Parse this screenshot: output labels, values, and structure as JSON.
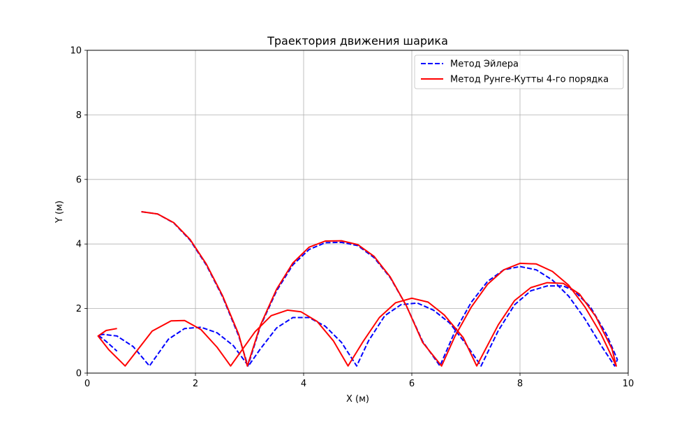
{
  "chart_data": {
    "type": "line",
    "title": "Траектория движения шарика",
    "xlabel": "X (м)",
    "ylabel": "Y (м)",
    "xlim": [
      0,
      10
    ],
    "ylim": [
      0,
      10
    ],
    "xticks": [
      0,
      2,
      4,
      6,
      8,
      10
    ],
    "yticks": [
      0,
      2,
      4,
      6,
      8,
      10
    ],
    "grid": true,
    "legend_position": "top-right",
    "series": [
      {
        "name": "Метод Эйлера",
        "color": "#0000ff",
        "linestyle": "dashed",
        "points": [
          [
            1.0,
            5.0
          ],
          [
            1.3,
            4.93
          ],
          [
            1.6,
            4.65
          ],
          [
            1.9,
            4.12
          ],
          [
            2.2,
            3.35
          ],
          [
            2.5,
            2.37
          ],
          [
            2.8,
            1.15
          ],
          [
            2.97,
            0.22
          ],
          [
            3.2,
            1.45
          ],
          [
            3.5,
            2.55
          ],
          [
            3.8,
            3.35
          ],
          [
            4.1,
            3.83
          ],
          [
            4.4,
            4.04
          ],
          [
            4.7,
            4.05
          ],
          [
            5.0,
            3.95
          ],
          [
            5.3,
            3.58
          ],
          [
            5.6,
            2.96
          ],
          [
            5.9,
            2.08
          ],
          [
            6.2,
            0.98
          ],
          [
            6.52,
            0.22
          ],
          [
            6.8,
            1.3
          ],
          [
            7.1,
            2.2
          ],
          [
            7.4,
            2.84
          ],
          [
            7.7,
            3.2
          ],
          [
            8.0,
            3.3
          ],
          [
            8.3,
            3.2
          ],
          [
            8.6,
            2.88
          ],
          [
            8.9,
            2.38
          ],
          [
            9.2,
            1.68
          ],
          [
            9.5,
            0.85
          ],
          [
            9.75,
            0.22
          ],
          [
            9.8,
            0.42
          ],
          [
            9.6,
            1.2
          ],
          [
            9.3,
            2.05
          ],
          [
            9.0,
            2.55
          ],
          [
            8.8,
            2.7
          ],
          [
            8.5,
            2.7
          ],
          [
            8.2,
            2.55
          ],
          [
            7.9,
            2.12
          ],
          [
            7.6,
            1.32
          ],
          [
            7.28,
            0.22
          ],
          [
            7.0,
            0.9
          ],
          [
            6.7,
            1.55
          ],
          [
            6.4,
            1.95
          ],
          [
            6.1,
            2.17
          ],
          [
            5.8,
            2.12
          ],
          [
            5.5,
            1.78
          ],
          [
            5.2,
            1.0
          ],
          [
            4.98,
            0.22
          ],
          [
            4.7,
            0.95
          ],
          [
            4.4,
            1.45
          ],
          [
            4.1,
            1.72
          ],
          [
            3.8,
            1.72
          ],
          [
            3.5,
            1.4
          ],
          [
            3.2,
            0.75
          ],
          [
            2.98,
            0.22
          ],
          [
            2.7,
            0.85
          ],
          [
            2.4,
            1.25
          ],
          [
            2.1,
            1.42
          ],
          [
            1.8,
            1.38
          ],
          [
            1.5,
            1.05
          ],
          [
            1.15,
            0.22
          ],
          [
            0.85,
            0.82
          ],
          [
            0.55,
            1.15
          ],
          [
            0.3,
            1.2
          ],
          [
            0.2,
            1.18
          ],
          [
            0.35,
            0.98
          ],
          [
            0.55,
            0.68
          ]
        ]
      },
      {
        "name": "Метод Рунге-Кутты 4-го порядка",
        "color": "#ff0000",
        "linestyle": "solid",
        "points": [
          [
            1.0,
            5.0
          ],
          [
            1.3,
            4.93
          ],
          [
            1.6,
            4.66
          ],
          [
            1.9,
            4.14
          ],
          [
            2.2,
            3.38
          ],
          [
            2.5,
            2.4
          ],
          [
            2.8,
            1.2
          ],
          [
            2.96,
            0.22
          ],
          [
            3.2,
            1.48
          ],
          [
            3.5,
            2.6
          ],
          [
            3.8,
            3.41
          ],
          [
            4.1,
            3.9
          ],
          [
            4.4,
            4.09
          ],
          [
            4.7,
            4.1
          ],
          [
            5.0,
            3.98
          ],
          [
            5.3,
            3.62
          ],
          [
            5.6,
            2.98
          ],
          [
            5.9,
            2.08
          ],
          [
            6.2,
            0.95
          ],
          [
            6.55,
            0.22
          ],
          [
            6.8,
            1.15
          ],
          [
            7.1,
            2.05
          ],
          [
            7.4,
            2.75
          ],
          [
            7.7,
            3.2
          ],
          [
            8.0,
            3.4
          ],
          [
            8.3,
            3.38
          ],
          [
            8.6,
            3.15
          ],
          [
            8.9,
            2.72
          ],
          [
            9.2,
            2.05
          ],
          [
            9.5,
            1.2
          ],
          [
            9.78,
            0.22
          ],
          [
            9.7,
            0.75
          ],
          [
            9.4,
            1.75
          ],
          [
            9.1,
            2.45
          ],
          [
            8.8,
            2.78
          ],
          [
            8.5,
            2.8
          ],
          [
            8.2,
            2.65
          ],
          [
            7.9,
            2.25
          ],
          [
            7.6,
            1.5
          ],
          [
            7.2,
            0.22
          ],
          [
            6.95,
            1.1
          ],
          [
            6.6,
            1.8
          ],
          [
            6.3,
            2.2
          ],
          [
            6.0,
            2.32
          ],
          [
            5.7,
            2.18
          ],
          [
            5.4,
            1.72
          ],
          [
            5.1,
            0.98
          ],
          [
            4.82,
            0.22
          ],
          [
            4.55,
            1.0
          ],
          [
            4.25,
            1.6
          ],
          [
            3.95,
            1.9
          ],
          [
            3.7,
            1.95
          ],
          [
            3.4,
            1.78
          ],
          [
            3.1,
            1.28
          ],
          [
            2.65,
            0.22
          ],
          [
            2.4,
            0.8
          ],
          [
            2.1,
            1.35
          ],
          [
            1.8,
            1.63
          ],
          [
            1.55,
            1.62
          ],
          [
            1.2,
            1.3
          ],
          [
            0.7,
            0.22
          ],
          [
            0.4,
            0.72
          ],
          [
            0.2,
            1.15
          ],
          [
            0.35,
            1.32
          ],
          [
            0.55,
            1.38
          ]
        ]
      }
    ]
  }
}
